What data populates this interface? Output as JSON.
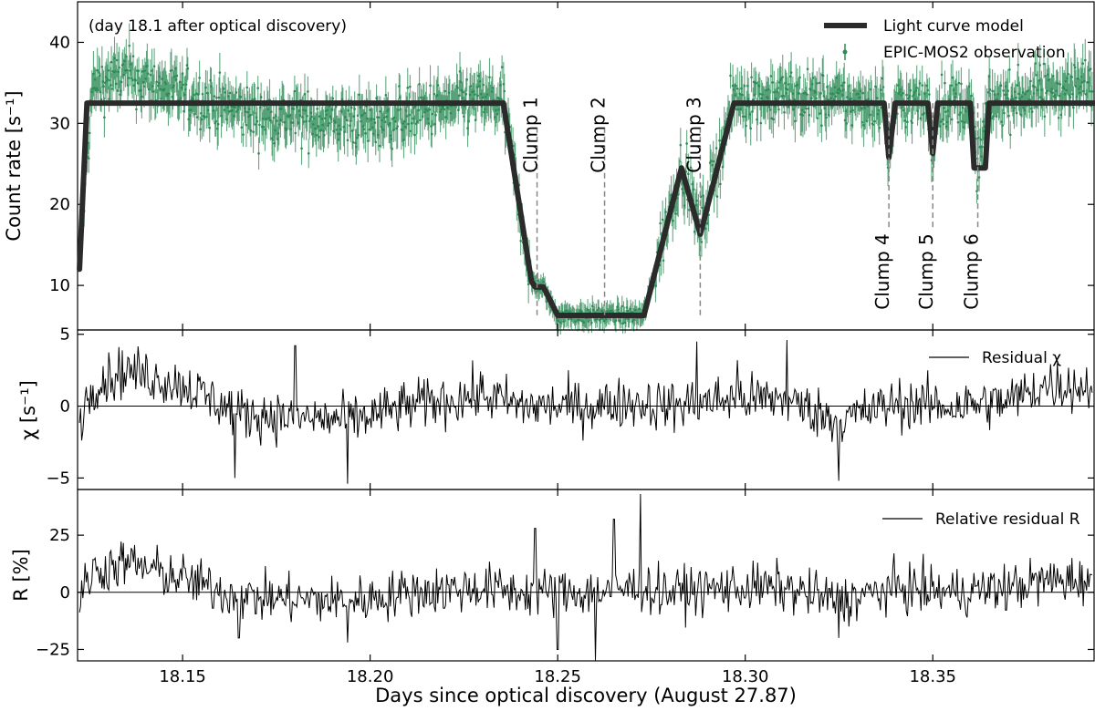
{
  "chart_data": {
    "type": "line",
    "xlabel": "Days since optical discovery (August 27.87)",
    "xlim": [
      18.122,
      18.393
    ],
    "x_ticks": [
      "18.15",
      "18.20",
      "18.25",
      "18.30",
      "18.35"
    ],
    "x_tick_values": [
      18.15,
      18.2,
      18.25,
      18.3,
      18.35
    ],
    "panels": [
      {
        "id": "light-curve",
        "type": "line+errorbar",
        "ylabel": "Count rate [s⁻¹]",
        "ylim": [
          4.5,
          45
        ],
        "y_ticks": [
          "10",
          "20",
          "30",
          "40"
        ],
        "y_tick_values": [
          10,
          20,
          30,
          40
        ],
        "annotation": "(day 18.1 after optical discovery)",
        "legend": [
          {
            "label": "Light curve model",
            "color": "#2b2b2b"
          },
          {
            "label": "EPIC-MOS2 observation",
            "color": "#2e8b57"
          }
        ],
        "model": {
          "x": [
            18.1225,
            18.1245,
            18.2355,
            18.243,
            18.244,
            18.2462,
            18.25,
            18.273,
            18.283,
            18.288,
            18.297,
            18.337,
            18.3383,
            18.34,
            18.3487,
            18.35,
            18.3513,
            18.36,
            18.361,
            18.362,
            18.364,
            18.365,
            18.393
          ],
          "y": [
            12.0,
            32.5,
            32.5,
            10.5,
            9.8,
            9.8,
            6.3,
            6.3,
            24.5,
            16.3,
            32.5,
            32.5,
            25.8,
            32.5,
            32.5,
            26.3,
            32.5,
            32.5,
            24.5,
            24.5,
            24.5,
            32.5,
            32.5
          ]
        },
        "observation_baseline": {
          "x": [
            18.1225,
            18.126,
            18.135,
            18.15,
            18.17,
            18.2,
            18.23,
            18.2355,
            18.243,
            18.2462,
            18.25,
            18.273,
            18.283,
            18.288,
            18.297,
            18.31,
            18.33,
            18.337,
            18.3383,
            18.34,
            18.3487,
            18.35,
            18.3513,
            18.36,
            18.362,
            18.365,
            18.38,
            18.393
          ],
          "y": [
            13.0,
            34.5,
            36.0,
            33.5,
            31.0,
            30.0,
            33.0,
            32.5,
            10.5,
            9.5,
            6.3,
            6.3,
            25.0,
            17.0,
            33.0,
            33.5,
            32.5,
            32.5,
            25.5,
            32.5,
            32.5,
            26.5,
            32.5,
            32.5,
            24.5,
            32.5,
            34.0,
            35.0
          ]
        },
        "clumps": [
          {
            "label": "Clump 1",
            "x": 18.2445
          },
          {
            "label": "Clump 2",
            "x": 18.2625
          },
          {
            "label": "Clump 3",
            "x": 18.288
          },
          {
            "label": "Clump 4",
            "x": 18.3383
          },
          {
            "label": "Clump 5",
            "x": 18.35
          },
          {
            "label": "Clump 6",
            "x": 18.362
          }
        ]
      },
      {
        "id": "residual-chi",
        "type": "line",
        "ylabel": "χ [s⁻¹]",
        "ylim": [
          -5.8,
          5.3
        ],
        "y_ticks": [
          "−5",
          "0",
          "5"
        ],
        "y_tick_values": [
          -5,
          0,
          5
        ],
        "legend": [
          {
            "label": "Residual χ",
            "color": "#000000"
          }
        ],
        "trend": {
          "x": [
            18.1225,
            18.126,
            18.135,
            18.15,
            18.165,
            18.18,
            18.195,
            18.21,
            18.23,
            18.24,
            18.25,
            18.26,
            18.27,
            18.28,
            18.295,
            18.31,
            18.325,
            18.34,
            18.355,
            18.37,
            18.38,
            18.393
          ],
          "y": [
            -1.0,
            1.5,
            2.5,
            1.5,
            -0.5,
            -0.8,
            -1.0,
            0.0,
            0.8,
            0.0,
            0.0,
            0.0,
            0.3,
            0.0,
            0.5,
            0.5,
            -1.0,
            0.2,
            0.0,
            0.3,
            1.5,
            1.3
          ]
        },
        "spikes": [
          [
            18.164,
            -5.0
          ],
          [
            18.194,
            -5.4
          ],
          [
            18.325,
            -5.2
          ],
          [
            18.287,
            -4.0
          ],
          [
            18.287,
            4.5
          ],
          [
            18.311,
            4.6
          ],
          [
            18.18,
            4.2
          ],
          [
            18.298,
            3.2
          ]
        ]
      },
      {
        "id": "relative-residual",
        "type": "line",
        "ylabel": "R [%]",
        "ylim": [
          -30,
          45
        ],
        "y_ticks": [
          "−25",
          "0",
          "25"
        ],
        "y_tick_values": [
          -25,
          0,
          25
        ],
        "legend": [
          {
            "label": "Relative residual R",
            "color": "#000000"
          }
        ],
        "trend": {
          "x": [
            18.1225,
            18.126,
            18.135,
            18.15,
            18.165,
            18.18,
            18.195,
            18.21,
            18.23,
            18.24,
            18.25,
            18.26,
            18.27,
            18.28,
            18.295,
            18.31,
            18.325,
            18.34,
            18.355,
            18.37,
            18.38,
            18.393
          ],
          "y": [
            -3.0,
            9.0,
            13.0,
            6.0,
            -2.0,
            -3.0,
            -4.0,
            0.0,
            2.0,
            0.0,
            0.0,
            0.0,
            2.0,
            0.0,
            2.0,
            2.0,
            -4.0,
            2.0,
            0.0,
            2.0,
            5.0,
            6.0
          ]
        },
        "spikes": [
          [
            18.272,
            43.0
          ],
          [
            18.26,
            -30.0
          ],
          [
            18.25,
            -25.0
          ],
          [
            18.194,
            -22.0
          ],
          [
            18.165,
            -20.0
          ],
          [
            18.325,
            -20.0
          ],
          [
            18.265,
            32.0
          ],
          [
            18.244,
            28.0
          ]
        ]
      }
    ]
  }
}
